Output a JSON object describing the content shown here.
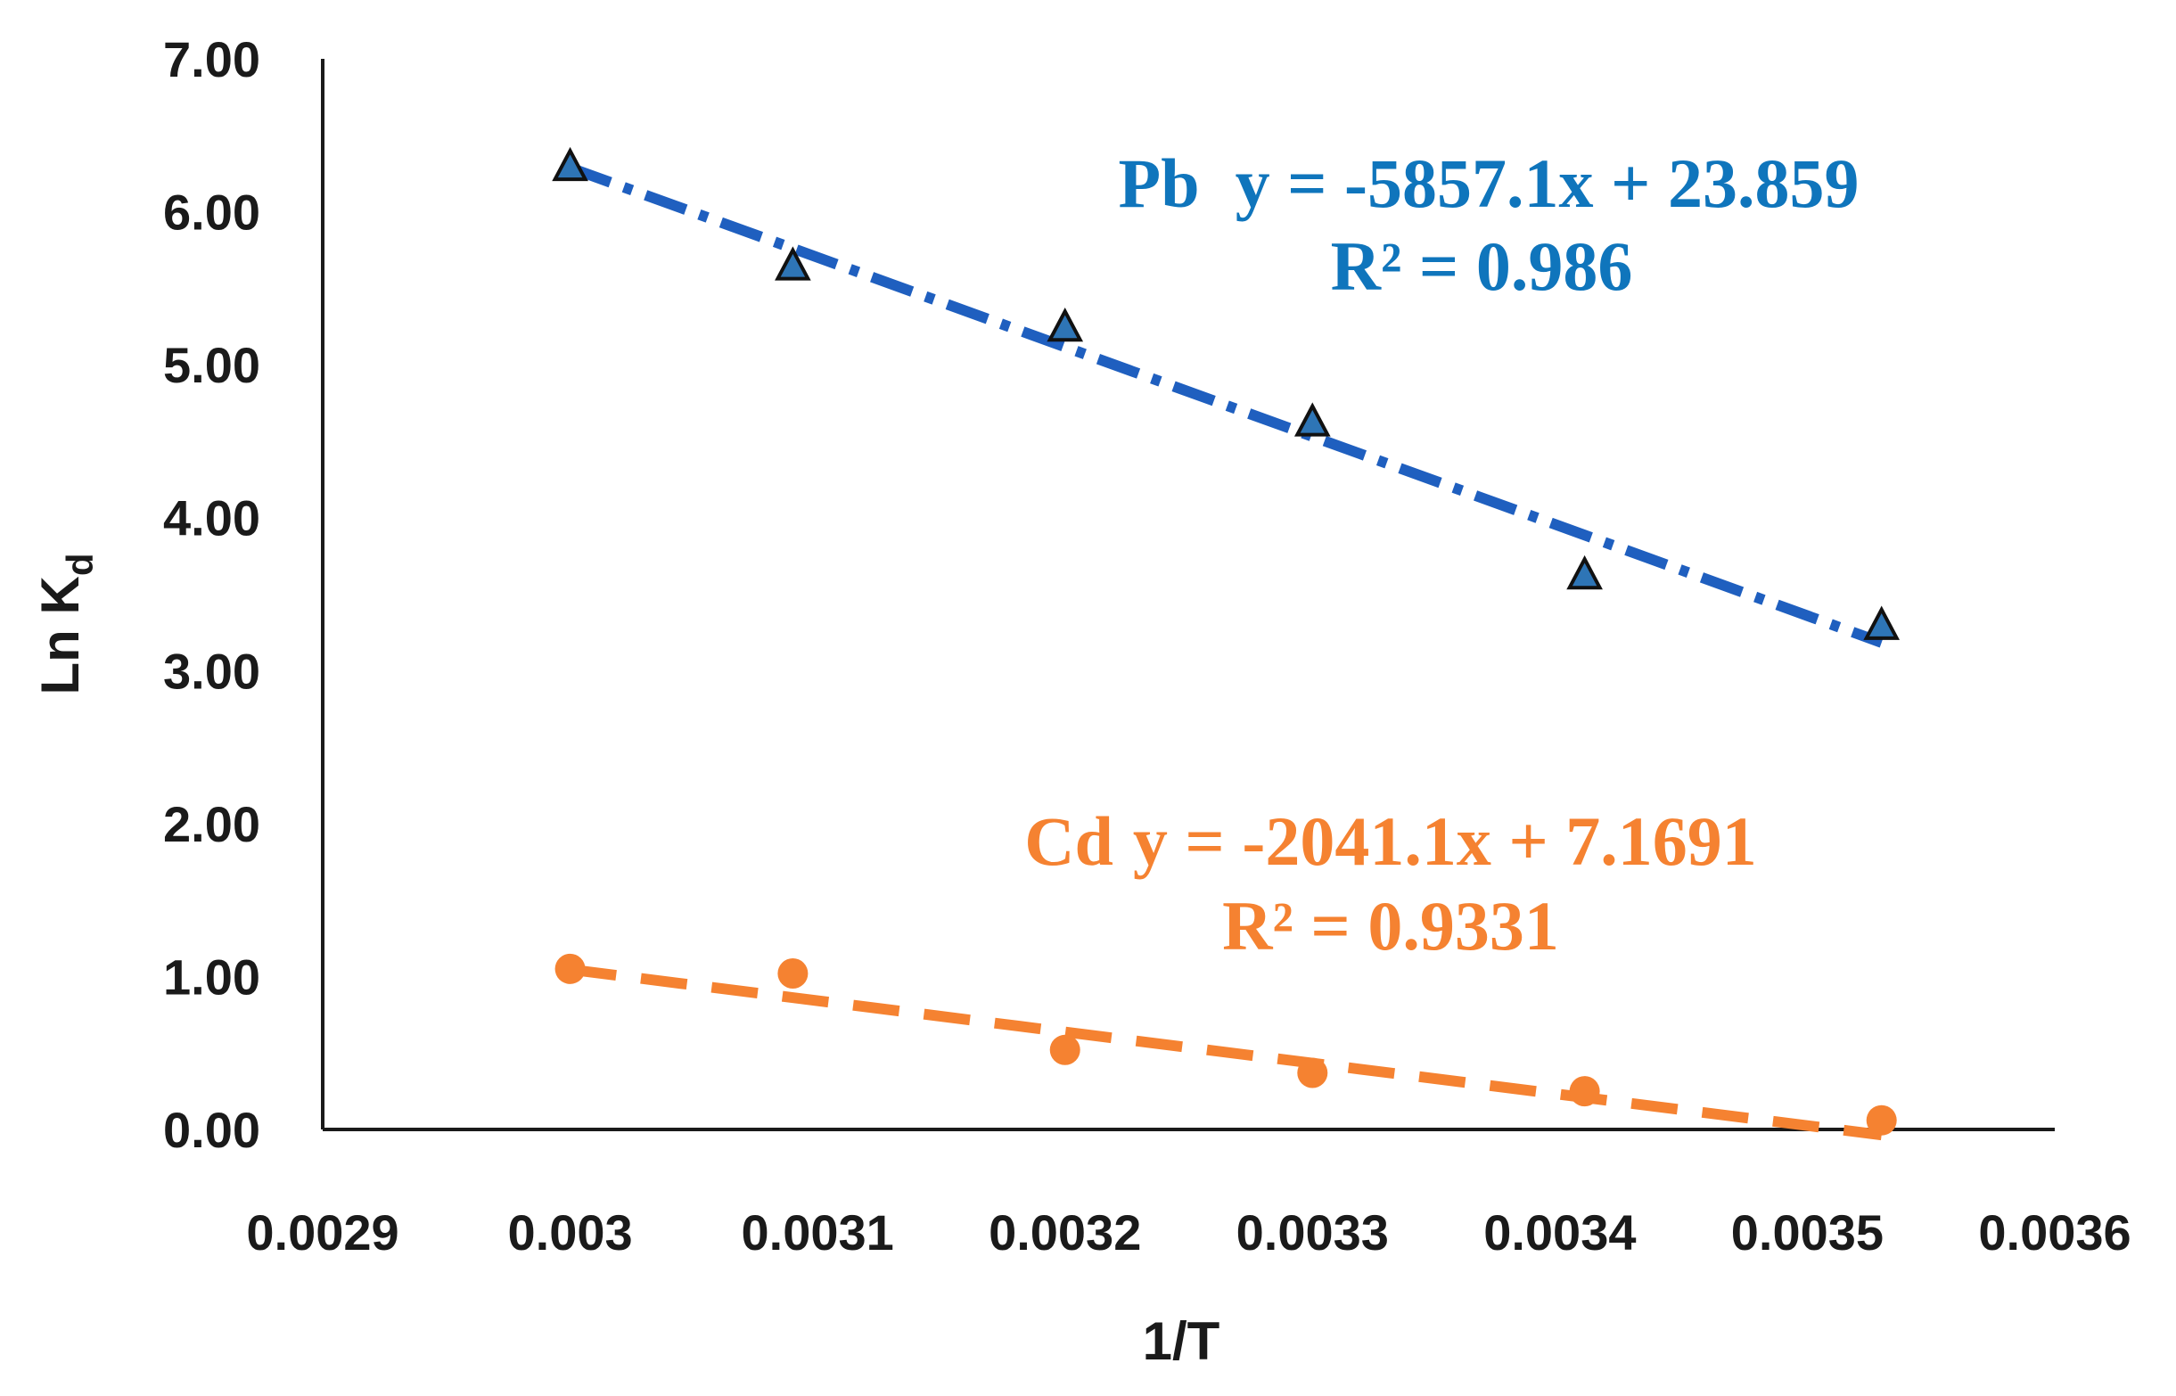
{
  "chart_data": {
    "type": "scatter",
    "title": "",
    "xlabel": "1/T",
    "ylabel": "Ln K",
    "ylabel_subscript": "d",
    "xlim": [
      0.0029,
      0.0036
    ],
    "ylim": [
      0,
      7
    ],
    "x_ticks": [
      0.0029,
      0.003,
      0.0031,
      0.0032,
      0.0033,
      0.0034,
      0.0035,
      0.0036
    ],
    "x_tick_labels": [
      "0.0029",
      "0.003",
      "0.0031",
      "0.0032",
      "0.0033",
      "0.0034",
      "0.0035",
      "0.0036"
    ],
    "y_ticks": [
      0,
      1,
      2,
      3,
      4,
      5,
      6,
      7
    ],
    "y_tick_labels": [
      "0.00",
      "1.00",
      "2.00",
      "3.00",
      "4.00",
      "5.00",
      "6.00",
      "7.00"
    ],
    "grid": false,
    "series": [
      {
        "name": "Pb",
        "marker": "triangle",
        "color": "#1f5fbf",
        "marker_fill": "#2e75b6",
        "x": [
          0.003,
          0.00309,
          0.0032,
          0.0033,
          0.00341,
          0.00353
        ],
        "y": [
          6.3,
          5.65,
          5.25,
          4.63,
          3.63,
          3.3
        ],
        "trendline": {
          "slope": -5857.1,
          "intercept": 23.859,
          "style": "dash-dot",
          "color": "#1f5fbf"
        },
        "equation_name": "Pb",
        "equation": "y = -5857.1x + 23.859",
        "r_squared": "R² = 0.986",
        "equation_color": "#0f75bc"
      },
      {
        "name": "Cd",
        "marker": "circle",
        "color": "#f58231",
        "marker_fill": "#f58231",
        "x": [
          0.003,
          0.00309,
          0.0032,
          0.0033,
          0.00341,
          0.00353
        ],
        "y": [
          1.05,
          1.02,
          0.52,
          0.37,
          0.25,
          0.06
        ],
        "trendline": {
          "slope": -2041.1,
          "intercept": 7.1691,
          "style": "dash",
          "color": "#f58231"
        },
        "equation_name": "Cd",
        "equation": "y = -2041.1x + 7.1691",
        "r_squared": "R² = 0.9331",
        "equation_color": "#f58231"
      }
    ]
  }
}
